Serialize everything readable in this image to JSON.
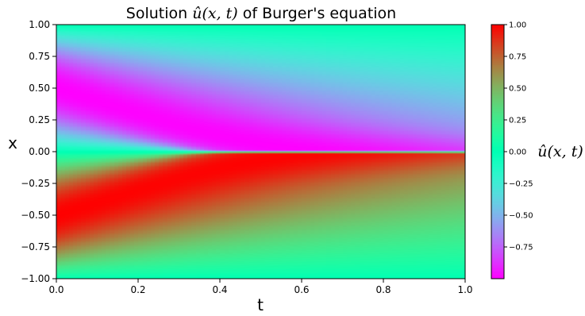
{
  "chart_data": {
    "type": "heatmap",
    "title": "Solution û(x, t) of Burger's equation",
    "title_parts": {
      "prefix": "Solution ",
      "math": "û(x, t)",
      "suffix": " of Burger's equation"
    },
    "xlabel": "t",
    "ylabel": "x",
    "xlim": [
      0.0,
      1.0
    ],
    "ylim": [
      -1.0,
      1.0
    ],
    "x_ticks": [
      "0.0",
      "0.2",
      "0.4",
      "0.6",
      "0.8",
      "1.0"
    ],
    "y_ticks": [
      "1.00",
      "0.75",
      "0.50",
      "0.25",
      "0.00",
      "−0.25",
      "−0.50",
      "−0.75",
      "−1.00"
    ],
    "colorbar": {
      "label": "û(x, t)",
      "colormap": "rainbow",
      "range": [
        -1.0,
        1.0
      ],
      "ticks": [
        "1.00",
        "0.75",
        "0.50",
        "0.25",
        "0.00",
        "−0.25",
        "−0.50",
        "−0.75"
      ]
    },
    "field_description": "u(x,0) = -sin(pi x); shock forms at x = 0 near t = 0.4; u(+-1, t) = 0",
    "grid": false,
    "legend": "none"
  }
}
